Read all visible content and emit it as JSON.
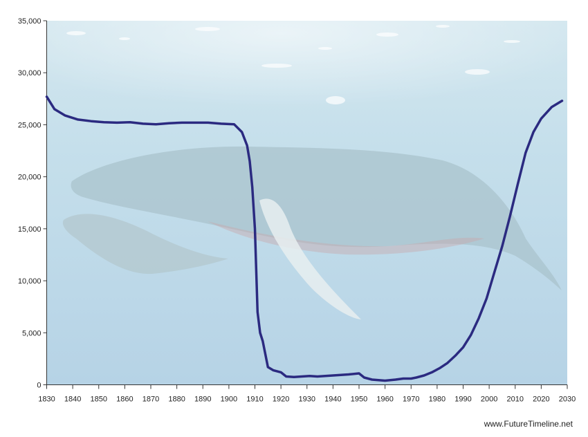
{
  "chart_data": {
    "type": "line",
    "title": "",
    "xlabel": "",
    "ylabel": "",
    "xlim": [
      1830,
      2030
    ],
    "ylim": [
      0,
      35000
    ],
    "x_ticks": [
      1830,
      1840,
      1850,
      1860,
      1870,
      1880,
      1890,
      1900,
      1910,
      1920,
      1930,
      1940,
      1950,
      1960,
      1970,
      1980,
      1990,
      2000,
      2010,
      2020,
      2030
    ],
    "x_tick_labels": [
      "1830",
      "1840",
      "1850",
      "1860",
      "1870",
      "1880",
      "1890",
      "1900",
      "1910",
      "1920",
      "1930",
      "1940",
      "1950",
      "1960",
      "1970",
      "1980",
      "1990",
      "2000",
      "2010",
      "2020",
      "2030"
    ],
    "y_ticks": [
      0,
      5000,
      10000,
      15000,
      20000,
      25000,
      30000,
      35000
    ],
    "y_tick_labels": [
      "0",
      "5,000",
      "10,000",
      "15,000",
      "20,000",
      "25,000",
      "30,000",
      "35,000"
    ],
    "grid": false,
    "background": "photo of humpback whales underwater",
    "series": [
      {
        "color": "#2b2a80",
        "x": [
          1830,
          1833,
          1837,
          1842,
          1847,
          1852,
          1857,
          1862,
          1867,
          1872,
          1877,
          1882,
          1887,
          1892,
          1897,
          1902,
          1905,
          1907,
          1908,
          1909,
          1910,
          1911,
          1912,
          1913,
          1915,
          1917,
          1920,
          1922,
          1925,
          1928,
          1931,
          1934,
          1937,
          1940,
          1943,
          1946,
          1950,
          1952,
          1955,
          1960,
          1964,
          1967,
          1970,
          1972,
          1975,
          1978,
          1981,
          1984,
          1987,
          1990,
          1993,
          1996,
          1999,
          2002,
          2005,
          2008,
          2011,
          2014,
          2017,
          2020,
          2024,
          2028
        ],
        "y": [
          27700,
          26500,
          25900,
          25500,
          25350,
          25250,
          25200,
          25250,
          25100,
          25050,
          25150,
          25200,
          25200,
          25200,
          25100,
          25050,
          24300,
          23000,
          21500,
          19000,
          15000,
          7000,
          5000,
          4200,
          1700,
          1400,
          1200,
          800,
          750,
          800,
          850,
          800,
          850,
          900,
          950,
          1000,
          1100,
          700,
          500,
          400,
          500,
          600,
          600,
          700,
          900,
          1200,
          1600,
          2100,
          2800,
          3600,
          4800,
          6400,
          8300,
          10800,
          13300,
          16200,
          19300,
          22300,
          24300,
          25600,
          26700,
          27300
        ]
      }
    ]
  },
  "credit": "www.FutureTimeline.net"
}
